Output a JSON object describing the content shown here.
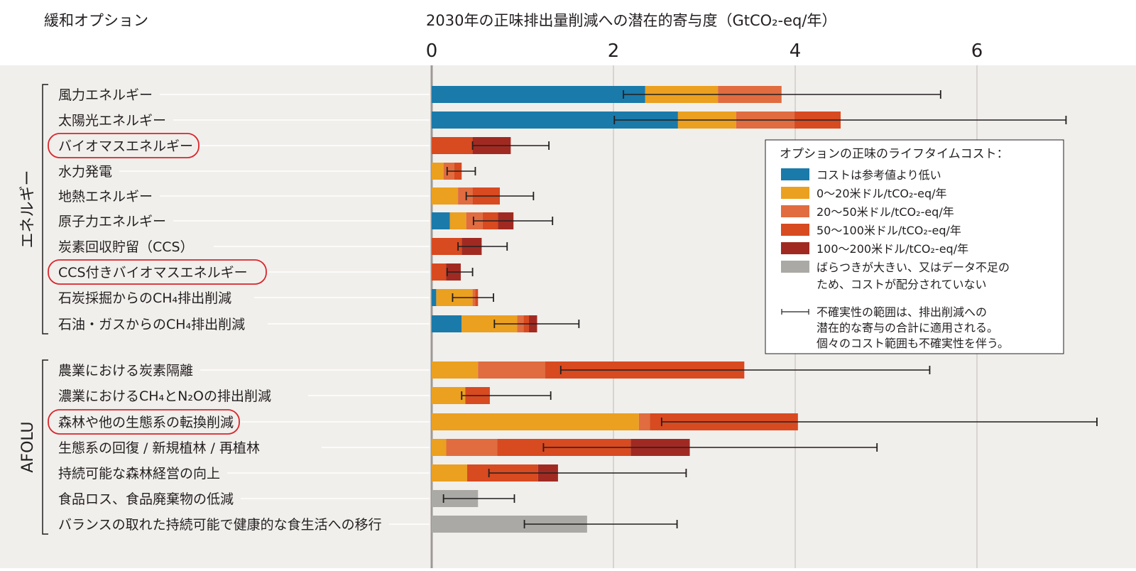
{
  "chart_data": {
    "type": "bar",
    "stacked": true,
    "orientation": "horizontal",
    "left_header": "緩和オプション",
    "title": "2030年の正味排出量削減への潜在的寄与度（GtCO₂-eq/年）",
    "xlim": [
      0,
      7.4
    ],
    "xticks": [
      0,
      2,
      4,
      6
    ],
    "grid": true,
    "colors": {
      "blue": "#1a7aaa",
      "orange": "#eba020",
      "lightorange": "#e06c40",
      "red": "#d84a20",
      "darkred": "#a02a22",
      "gray": "#aaa9a5"
    },
    "groups": [
      {
        "name": "エネルギー",
        "rows": [
          {
            "label": "風力エネルギー",
            "highlight": false,
            "segments": [
              [
                "blue",
                2.35
              ],
              [
                "orange",
                3.15
              ],
              [
                "lightorange",
                3.85
              ]
            ],
            "error": [
              2.11,
              5.6
            ]
          },
          {
            "label": "太陽光エネルギー",
            "highlight": false,
            "segments": [
              [
                "blue",
                2.71
              ],
              [
                "orange",
                3.35
              ],
              [
                "lightorange",
                3.99
              ],
              [
                "red",
                4.5
              ]
            ],
            "error": [
              2.01,
              6.98
            ]
          },
          {
            "label": "バイオマスエネルギー",
            "highlight": true,
            "segments": [
              [
                "red",
                0.45
              ],
              [
                "darkred",
                0.87
              ]
            ],
            "error": [
              0.45,
              1.29
            ]
          },
          {
            "label": "水力発電",
            "highlight": false,
            "segments": [
              [
                "orange",
                0.13
              ],
              [
                "lightorange",
                0.25
              ],
              [
                "red",
                0.33
              ]
            ],
            "error": [
              0.17,
              0.48
            ]
          },
          {
            "label": "地熱エネルギー",
            "highlight": false,
            "segments": [
              [
                "orange",
                0.29
              ],
              [
                "lightorange",
                0.45
              ],
              [
                "red",
                0.75
              ]
            ],
            "error": [
              0.38,
              1.12
            ]
          },
          {
            "label": "原子力エネルギー",
            "highlight": false,
            "segments": [
              [
                "blue",
                0.2
              ],
              [
                "orange",
                0.38
              ],
              [
                "lightorange",
                0.56
              ],
              [
                "red",
                0.73
              ],
              [
                "darkred",
                0.9
              ]
            ],
            "error": [
              0.46,
              1.33
            ]
          },
          {
            "label": "炭素回収貯留（CCS）",
            "highlight": false,
            "segments": [
              [
                "red",
                0.33
              ],
              [
                "darkred",
                0.55
              ]
            ],
            "error": [
              0.29,
              0.83
            ]
          },
          {
            "label": "CCS付きバイオマスエネルギー",
            "highlight": true,
            "segments": [
              [
                "red",
                0.16
              ],
              [
                "darkred",
                0.32
              ]
            ],
            "error": [
              0.17,
              0.45
            ]
          },
          {
            "label": "石炭採掘からのCH₄排出削減",
            "highlight": false,
            "segments": [
              [
                "blue",
                0.05
              ],
              [
                "orange",
                0.45
              ],
              [
                "lightorange",
                0.48
              ],
              [
                "red",
                0.51
              ]
            ],
            "error": [
              0.23,
              0.68
            ]
          },
          {
            "label": "石油・ガスからのCH₄排出削減",
            "highlight": false,
            "segments": [
              [
                "blue",
                0.33
              ],
              [
                "orange",
                0.94
              ],
              [
                "lightorange",
                1.01
              ],
              [
                "red",
                1.07
              ],
              [
                "darkred",
                1.16
              ]
            ],
            "error": [
              0.69,
              1.62
            ]
          }
        ]
      },
      {
        "name": "AFOLU",
        "rows": [
          {
            "label": "農業における炭素隔離",
            "highlight": false,
            "segments": [
              [
                "orange",
                0.51
              ],
              [
                "lightorange",
                1.25
              ],
              [
                "red",
                3.44
              ]
            ],
            "error": [
              1.42,
              5.48
            ]
          },
          {
            "label": "濃業におけるCH₄とN₂Oの排出削減",
            "highlight": false,
            "segments": [
              [
                "orange",
                0.37
              ],
              [
                "red",
                0.64
              ]
            ],
            "error": [
              0.33,
              1.31
            ]
          },
          {
            "label": "森林や他の生態系の転換削減",
            "highlight": true,
            "segments": [
              [
                "orange",
                2.28
              ],
              [
                "lightorange",
                2.4
              ],
              [
                "red",
                4.03
              ]
            ],
            "error": [
              2.53,
              7.32
            ]
          },
          {
            "label": "生態系の回復 / 新規植林 / 再植林",
            "highlight": false,
            "segments": [
              [
                "orange",
                0.16
              ],
              [
                "lightorange",
                0.72
              ],
              [
                "red",
                2.19
              ],
              [
                "darkred",
                2.84
              ]
            ],
            "error": [
              1.23,
              4.9
            ]
          },
          {
            "label": "持続可能な森林経営の向上",
            "highlight": false,
            "segments": [
              [
                "orange",
                0.39
              ],
              [
                "red",
                1.17
              ],
              [
                "darkred",
                1.39
              ]
            ],
            "error": [
              0.63,
              2.8
            ]
          },
          {
            "label": "食品ロス、食品廃棄物の低減",
            "highlight": false,
            "segments": [
              [
                "gray",
                0.51
              ]
            ],
            "error": [
              0.13,
              0.91
            ]
          },
          {
            "label": "バランスの取れた持続可能で健康的な食生活への移行",
            "highlight": false,
            "segments": [
              [
                "gray",
                1.71
              ]
            ],
            "error": [
              1.02,
              2.7
            ]
          }
        ]
      }
    ],
    "legend": {
      "title": "オプションの正味のライフタイムコスト：",
      "placement": "right",
      "items": [
        {
          "key": "blue",
          "lines": [
            "コストは参考値より低い"
          ]
        },
        {
          "key": "orange",
          "lines": [
            "0〜20米ドル/tCO₂-eq/年"
          ]
        },
        {
          "key": "lightorange",
          "lines": [
            "20〜50米ドル/tCO₂-eq/年"
          ]
        },
        {
          "key": "red",
          "lines": [
            "50〜100米ドル/tCO₂-eq/年"
          ]
        },
        {
          "key": "darkred",
          "lines": [
            "100〜200米ドル/tCO₂-eq/年"
          ]
        },
        {
          "key": "gray",
          "lines": [
            "ばらつきが大きい、又はデータ不足の",
            "ため、コストが配分されていない"
          ]
        }
      ],
      "error_note": [
        "不確実性の範囲は、排出削減への",
        "潜在的な寄与の合計に適用される。",
        "個々のコスト範囲も不確実性を伴う。"
      ]
    }
  }
}
